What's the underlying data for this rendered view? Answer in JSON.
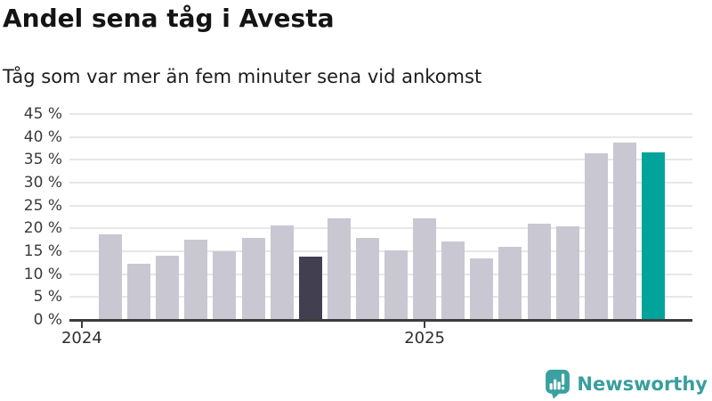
{
  "header": {
    "title": "Andel sena tåg i Avesta",
    "subtitle": "Tåg som var mer än fem minuter sena vid ankomst"
  },
  "chart_data": {
    "type": "bar",
    "title": "Andel sena tåg i Avesta",
    "subtitle": "Tåg som var mer än fem minuter sena vid ankomst",
    "xlabel": "",
    "ylabel": "",
    "ylim": [
      0,
      45
    ],
    "grid": true,
    "legend": "none",
    "ytick_labels": [
      "0 %",
      "5 %",
      "10 %",
      "15 %",
      "20 %",
      "25 %",
      "30 %",
      "35 %",
      "40 %",
      "45 %"
    ],
    "values": [
      18.7,
      12.3,
      14.1,
      17.5,
      15.0,
      18.0,
      20.6,
      13.9,
      22.2,
      18.0,
      15.2,
      22.2,
      17.2,
      13.5,
      16.0,
      21.1,
      20.4,
      36.4,
      38.8,
      36.7
    ],
    "highlight_dark_index": 7,
    "highlight_latest_index": 19,
    "xticks": [
      {
        "label": "2024",
        "bar_offset": -1
      },
      {
        "label": "2025",
        "bar_offset": 11
      }
    ],
    "colors": {
      "bar_default": "#c9c7d1",
      "bar_highlight_dark": "#423f50",
      "bar_highlight_latest": "#00a49b"
    }
  },
  "footer": {
    "brand": "Newsworthy",
    "brand_color": "#389e9e",
    "brand_icon": "newsworthy-chart-bubble-icon"
  }
}
